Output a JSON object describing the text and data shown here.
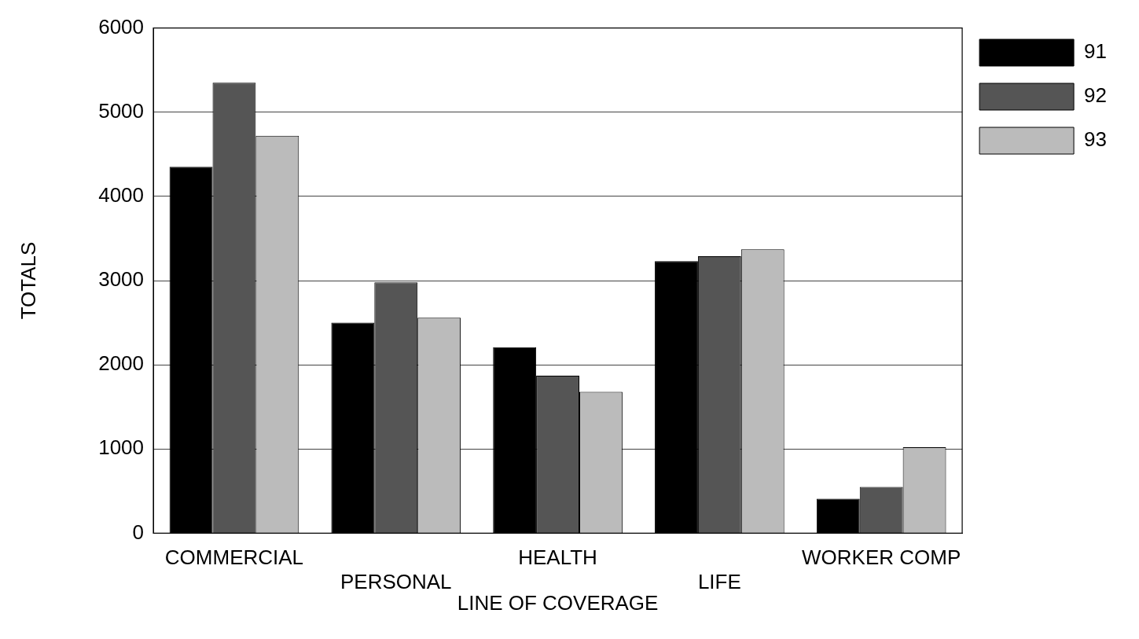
{
  "chart_data": {
    "type": "bar",
    "xlabel": "LINE OF COVERAGE",
    "ylabel": "TOTALS",
    "categories": [
      "COMMERCIAL",
      "PERSONAL",
      "HEALTH",
      "LIFE",
      "WORKER COMP"
    ],
    "series": [
      {
        "name": "91",
        "color": "#000000",
        "values": [
          4350,
          2500,
          2210,
          3230,
          410
        ]
      },
      {
        "name": "92",
        "color": "#555555",
        "values": [
          5350,
          2980,
          1870,
          3290,
          550
        ]
      },
      {
        "name": "93",
        "color": "#bbbbbb",
        "values": [
          4720,
          2560,
          1680,
          3370,
          1020
        ]
      }
    ],
    "ylim": [
      0,
      6000
    ],
    "yticks": [
      0,
      1000,
      2000,
      3000,
      4000,
      5000,
      6000
    ],
    "grid": "y",
    "legend": "top right"
  }
}
